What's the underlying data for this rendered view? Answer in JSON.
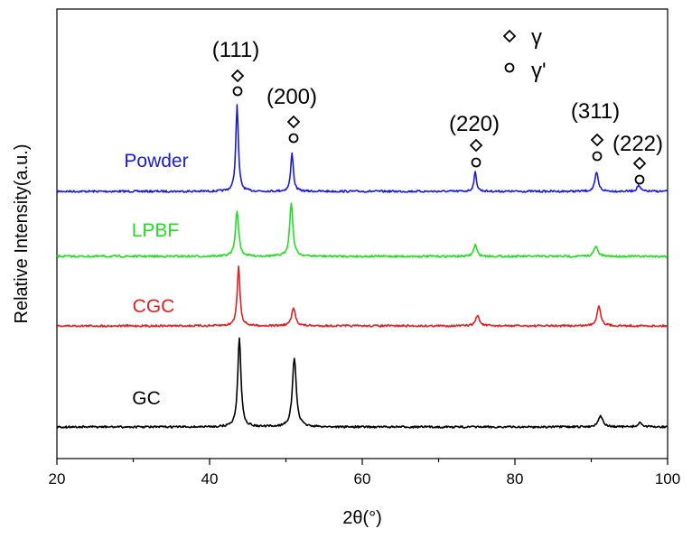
{
  "chart_data": {
    "type": "line",
    "xlabel": "2θ(°)",
    "ylabel": "Relative Intensity(a.u.)",
    "xlim": [
      20,
      100
    ],
    "xticks": [
      "20",
      "40",
      "60",
      "80",
      "100"
    ],
    "y_ticks_shown": false,
    "grid": false,
    "series": [
      {
        "name": "Powder",
        "color": "#1a1adb",
        "baseline": 3.3,
        "peaks": [
          {
            "x": 43.6,
            "height": 1.0,
            "width": 0.2
          },
          {
            "x": 50.8,
            "height": 0.45,
            "width": 0.2
          },
          {
            "x": 74.8,
            "height": 0.22,
            "width": 0.2
          },
          {
            "x": 90.7,
            "height": 0.22,
            "width": 0.25
          },
          {
            "x": 96.2,
            "height": 0.07,
            "width": 0.25
          }
        ]
      },
      {
        "name": "LPBF",
        "color": "#22dd22",
        "baseline": 2.3,
        "peaks": [
          {
            "x": 43.6,
            "height": 0.55,
            "width": 0.25
          },
          {
            "x": 50.7,
            "height": 0.65,
            "width": 0.25
          },
          {
            "x": 74.8,
            "height": 0.14,
            "width": 0.25
          },
          {
            "x": 90.6,
            "height": 0.12,
            "width": 0.3
          }
        ]
      },
      {
        "name": "CGC",
        "color": "#e02020",
        "baseline": 1.3,
        "peaks": [
          {
            "x": 43.8,
            "height": 0.75,
            "width": 0.22
          },
          {
            "x": 51.0,
            "height": 0.22,
            "width": 0.3
          },
          {
            "x": 75.1,
            "height": 0.13,
            "width": 0.3
          },
          {
            "x": 91.0,
            "height": 0.25,
            "width": 0.3
          }
        ]
      },
      {
        "name": "GC",
        "color": "#000000",
        "baseline": 0.3,
        "peaks": [
          {
            "x": 43.9,
            "height": 1.1,
            "width": 0.25
          },
          {
            "x": 51.1,
            "height": 0.85,
            "width": 0.3
          },
          {
            "x": 91.2,
            "height": 0.14,
            "width": 0.35
          },
          {
            "x": 96.4,
            "height": 0.05,
            "width": 0.35
          }
        ]
      }
    ],
    "peak_annotations": [
      {
        "label": "(111)",
        "x": 43.6,
        "markers": [
          "diamond",
          "circle"
        ]
      },
      {
        "label": "(200)",
        "x": 50.8,
        "markers": [
          "diamond",
          "circle"
        ]
      },
      {
        "label": "(220)",
        "x": 74.8,
        "markers": [
          "diamond",
          "circle"
        ]
      },
      {
        "label": "(311)",
        "x": 90.7,
        "markers": [
          "diamond",
          "circle"
        ]
      },
      {
        "label": "(222)",
        "x": 96.2,
        "markers": [
          "diamond",
          "circle"
        ]
      }
    ],
    "legend": {
      "placement": "top-right",
      "items": [
        {
          "marker": "diamond",
          "label": "γ"
        },
        {
          "marker": "circle",
          "label": "γ'"
        }
      ]
    }
  }
}
